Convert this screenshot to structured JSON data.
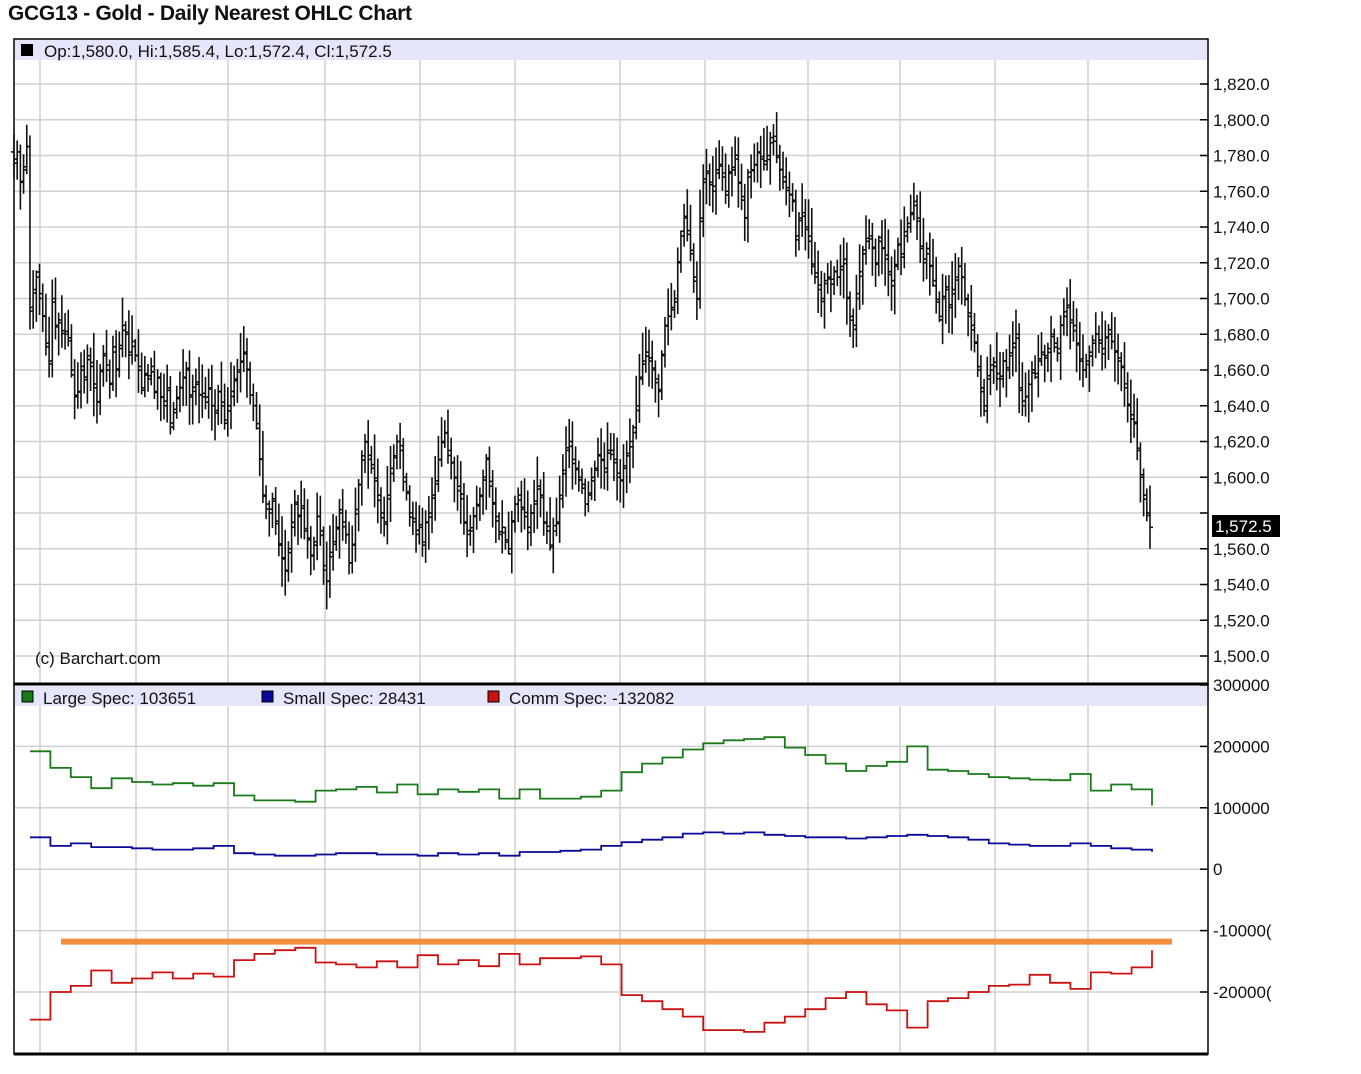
{
  "title": "GCG13 - Gold - Daily Nearest OHLC Chart",
  "price_panel": {
    "info_line": "Op:1,580.0, Hi:1,585.4, Lo:1,572.4, Cl:1,572.5",
    "watermark": "(c) Barchart.com",
    "last_price_label": "1,572.5",
    "y_ticks": [
      "1,500.0",
      "1,520.0",
      "1,540.0",
      "1,560.0",
      "1,580.0",
      "1,600.0",
      "1,620.0",
      "1,640.0",
      "1,660.0",
      "1,680.0",
      "1,700.0",
      "1,720.0",
      "1,740.0",
      "1,760.0",
      "1,780.0",
      "1,800.0",
      "1,820.0"
    ]
  },
  "cot_panel": {
    "y_ticks": [
      "300000",
      "200000",
      "100000",
      "0",
      "-10000(",
      "-20000("
    ],
    "legend": [
      {
        "label": "Large Spec: 103651",
        "color": "#1a7a1a"
      },
      {
        "label": "Small Spec: 28431",
        "color": "#0a0a99"
      },
      {
        "label": "Comm Spec: -132082",
        "color": "#cc1111"
      }
    ],
    "reference_line_value": -118000,
    "reference_line_color": "#f09040"
  },
  "colors": {
    "header_band": "#e6e6fa",
    "grid": "#d0d0d0",
    "bars": "#111111"
  },
  "chart_data": [
    {
      "type": "ohlc",
      "title": "GCG13 - Gold - Daily Nearest OHLC Chart",
      "ylim": [
        1500,
        1820
      ],
      "last": {
        "open": 1580.0,
        "high": 1585.4,
        "low": 1572.4,
        "close": 1572.5
      },
      "close_path": [
        1778,
        1782,
        1765,
        1772,
        1785,
        1695,
        1705,
        1712,
        1700,
        1690,
        1675,
        1665,
        1700,
        1685,
        1688,
        1682,
        1680,
        1678,
        1660,
        1645,
        1648,
        1660,
        1656,
        1668,
        1662,
        1650,
        1642,
        1660,
        1668,
        1660,
        1652,
        1670,
        1660,
        1672,
        1685,
        1680,
        1670,
        1676,
        1668,
        1662,
        1650,
        1658,
        1655,
        1662,
        1648,
        1656,
        1645,
        1640,
        1650,
        1628,
        1638,
        1644,
        1650,
        1656,
        1660,
        1645,
        1648,
        1652,
        1646,
        1645,
        1642,
        1650,
        1640,
        1636,
        1648,
        1642,
        1632,
        1640,
        1648,
        1654,
        1660,
        1665,
        1670,
        1660,
        1646,
        1640,
        1630,
        1610,
        1590,
        1585,
        1580,
        1588,
        1574,
        1562,
        1555,
        1548,
        1560,
        1572,
        1586,
        1578,
        1584,
        1570,
        1566,
        1556,
        1562,
        1578,
        1570,
        1548,
        1542,
        1558,
        1564,
        1572,
        1580,
        1575,
        1568,
        1552,
        1562,
        1582,
        1596,
        1612,
        1620,
        1610,
        1605,
        1598,
        1590,
        1580,
        1575,
        1590,
        1605,
        1612,
        1620,
        1615,
        1600,
        1592,
        1580,
        1575,
        1568,
        1572,
        1562,
        1575,
        1580,
        1590,
        1598,
        1610,
        1620,
        1625,
        1615,
        1608,
        1600,
        1595,
        1588,
        1575,
        1568,
        1570,
        1578,
        1584,
        1590,
        1600,
        1610,
        1595,
        1585,
        1578,
        1568,
        1572,
        1565,
        1560,
        1575,
        1585,
        1590,
        1582,
        1578,
        1572,
        1580,
        1585,
        1595,
        1590,
        1575,
        1570,
        1562,
        1570,
        1575,
        1588,
        1602,
        1615,
        1620,
        1610,
        1605,
        1600,
        1596,
        1585,
        1590,
        1600,
        1605,
        1612,
        1610,
        1605,
        1615,
        1615,
        1610,
        1600,
        1598,
        1605,
        1612,
        1620,
        1625,
        1640,
        1655,
        1665,
        1670,
        1665,
        1660,
        1655,
        1648,
        1668,
        1685,
        1690,
        1695,
        1700,
        1720,
        1735,
        1745,
        1738,
        1725,
        1712,
        1700,
        1745,
        1765,
        1770,
        1765,
        1760,
        1772,
        1775,
        1768,
        1760,
        1770,
        1772,
        1778,
        1765,
        1755,
        1745,
        1768,
        1772,
        1775,
        1782,
        1778,
        1775,
        1780,
        1790,
        1788,
        1780,
        1772,
        1768,
        1762,
        1758,
        1755,
        1735,
        1745,
        1748,
        1740,
        1732,
        1718,
        1712,
        1705,
        1700,
        1710,
        1712,
        1708,
        1715,
        1712,
        1718,
        1722,
        1700,
        1690,
        1685,
        1700,
        1715,
        1725,
        1732,
        1735,
        1728,
        1720,
        1732,
        1728,
        1722,
        1715,
        1710,
        1718,
        1730,
        1725,
        1735,
        1742,
        1748,
        1752,
        1745,
        1728,
        1720,
        1725,
        1718,
        1710,
        1698,
        1690,
        1700,
        1705,
        1695,
        1705,
        1712,
        1718,
        1712,
        1700,
        1690,
        1685,
        1675,
        1660,
        1650,
        1640,
        1655,
        1660,
        1662,
        1658,
        1655,
        1665,
        1660,
        1668,
        1675,
        1680,
        1650,
        1640,
        1645,
        1652,
        1660,
        1658,
        1665,
        1670,
        1668,
        1672,
        1680,
        1675,
        1672,
        1685,
        1690,
        1695,
        1688,
        1682,
        1675,
        1665,
        1660,
        1665,
        1670,
        1675,
        1680,
        1675,
        1672,
        1678,
        1680,
        1676,
        1670,
        1665,
        1662,
        1650,
        1640,
        1635,
        1630,
        1615,
        1600,
        1590,
        1580,
        1572
      ]
    },
    {
      "type": "line",
      "title": "COT",
      "ylim": [
        -270000,
        300000
      ],
      "series": [
        {
          "name": "Large Spec",
          "color": "#1a7a1a",
          "values": [
            192000,
            192000,
            165000,
            165000,
            150000,
            150000,
            132000,
            132000,
            148000,
            148000,
            142000,
            142000,
            138000,
            138000,
            140000,
            140000,
            136000,
            136000,
            140000,
            140000,
            120000,
            120000,
            112000,
            112000,
            112000,
            112000,
            110000,
            110000,
            128000,
            128000,
            130000,
            130000,
            134000,
            134000,
            125000,
            125000,
            138000,
            138000,
            122000,
            122000,
            130000,
            130000,
            126000,
            126000,
            130000,
            130000,
            115000,
            115000,
            130000,
            130000,
            115000,
            115000,
            115000,
            115000,
            118000,
            118000,
            128000,
            128000,
            158000,
            158000,
            172000,
            172000,
            182000,
            182000,
            195000,
            195000,
            205000,
            205000,
            210000,
            210000,
            212000,
            212000,
            215000,
            215000,
            198000,
            198000,
            186000,
            186000,
            172000,
            172000,
            160000,
            160000,
            168000,
            168000,
            175000,
            175000,
            200000,
            200000,
            162000,
            162000,
            160000,
            160000,
            155000,
            155000,
            150000,
            150000,
            148000,
            148000,
            146000,
            146000,
            145000,
            145000,
            155000,
            155000,
            128000,
            128000,
            138000,
            138000,
            130000,
            130000,
            103651
          ]
        },
        {
          "name": "Small Spec",
          "color": "#0a0a99",
          "values": [
            52000,
            52000,
            38000,
            38000,
            42000,
            42000,
            36000,
            36000,
            36000,
            36000,
            34000,
            34000,
            32000,
            32000,
            32000,
            32000,
            34000,
            34000,
            38000,
            38000,
            26000,
            26000,
            24000,
            24000,
            22000,
            22000,
            22000,
            22000,
            24000,
            24000,
            26000,
            26000,
            26000,
            26000,
            24000,
            24000,
            24000,
            24000,
            22000,
            22000,
            26000,
            26000,
            24000,
            24000,
            26000,
            26000,
            22000,
            22000,
            28000,
            28000,
            28000,
            28000,
            30000,
            30000,
            32000,
            32000,
            38000,
            38000,
            44000,
            44000,
            48000,
            48000,
            52000,
            52000,
            58000,
            58000,
            60000,
            60000,
            58000,
            58000,
            60000,
            60000,
            56000,
            56000,
            54000,
            54000,
            52000,
            52000,
            52000,
            52000,
            50000,
            50000,
            52000,
            52000,
            54000,
            54000,
            56000,
            56000,
            54000,
            54000,
            52000,
            52000,
            48000,
            48000,
            42000,
            42000,
            40000,
            40000,
            38000,
            38000,
            38000,
            38000,
            42000,
            42000,
            38000,
            38000,
            34000,
            34000,
            32000,
            32000,
            28431
          ]
        },
        {
          "name": "Comm Spec",
          "color": "#cc1111",
          "values": [
            -245000,
            -245000,
            -200000,
            -200000,
            -190000,
            -190000,
            -165000,
            -165000,
            -185000,
            -185000,
            -178000,
            -178000,
            -168000,
            -168000,
            -178000,
            -178000,
            -170000,
            -170000,
            -175000,
            -175000,
            -148000,
            -148000,
            -138000,
            -138000,
            -132000,
            -132000,
            -128000,
            -128000,
            -152000,
            -152000,
            -155000,
            -155000,
            -160000,
            -160000,
            -150000,
            -150000,
            -160000,
            -160000,
            -140000,
            -140000,
            -155000,
            -155000,
            -148000,
            -148000,
            -158000,
            -158000,
            -138000,
            -138000,
            -155000,
            -155000,
            -145000,
            -145000,
            -145000,
            -145000,
            -142000,
            -142000,
            -155000,
            -155000,
            -205000,
            -205000,
            -215000,
            -215000,
            -228000,
            -228000,
            -240000,
            -240000,
            -262000,
            -262000,
            -262000,
            -262000,
            -265000,
            -265000,
            -250000,
            -250000,
            -240000,
            -240000,
            -228000,
            -228000,
            -210000,
            -210000,
            -200000,
            -200000,
            -220000,
            -220000,
            -230000,
            -230000,
            -258000,
            -258000,
            -215000,
            -215000,
            -210000,
            -210000,
            -200000,
            -200000,
            -190000,
            -190000,
            -188000,
            -188000,
            -172000,
            -172000,
            -185000,
            -185000,
            -195000,
            -195000,
            -168000,
            -168000,
            -170000,
            -170000,
            -160000,
            -160000,
            -132082
          ]
        }
      ]
    }
  ]
}
